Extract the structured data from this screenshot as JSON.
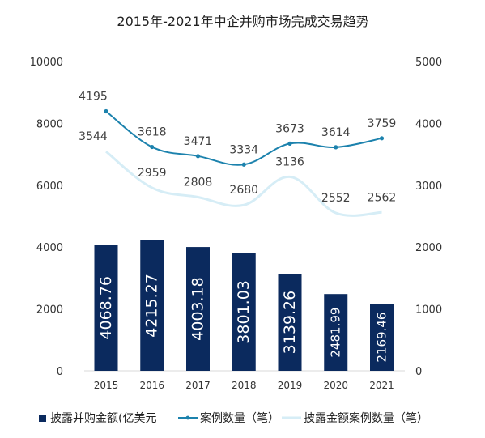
{
  "chart_data": {
    "type": "bar",
    "title": "2015年-2021年中企并购市场完成交易趋势",
    "categories": [
      "2015",
      "2016",
      "2017",
      "2018",
      "2019",
      "2020",
      "2021"
    ],
    "y_left": {
      "min": 0,
      "max": 10000,
      "ticks": [
        "0",
        "2000",
        "4000",
        "6000",
        "8000",
        "10000"
      ]
    },
    "y_right": {
      "min": 0,
      "max": 5000,
      "ticks": [
        "0",
        "1000",
        "2000",
        "3000",
        "4000",
        "5000"
      ]
    },
    "series": [
      {
        "name": "披露并购金额(亿美元",
        "kind": "bar",
        "axis": "left",
        "color": "#0b2a5e",
        "values": [
          4068.76,
          4215.27,
          4003.18,
          3801.03,
          3139.26,
          2481.99,
          2169.46
        ],
        "labels": [
          "4068.76",
          "4215.27",
          "4003.18",
          "3801.03",
          "3139.26",
          "2481.99",
          "2169.46"
        ]
      },
      {
        "name": "案例数量（笔）",
        "kind": "line",
        "axis": "right",
        "color": "#1c82ad",
        "values": [
          4195,
          3618,
          3471,
          3334,
          3673,
          3614,
          3759
        ],
        "labels": [
          "4195",
          "3618",
          "3471",
          "3334",
          "3673",
          "3614",
          "3759"
        ]
      },
      {
        "name": "披露金额案例数量（笔）",
        "kind": "line",
        "axis": "right",
        "color": "#d6edf6",
        "values": [
          3544,
          2959,
          2808,
          2680,
          3136,
          2552,
          2562
        ],
        "labels": [
          "3544",
          "2959",
          "2808",
          "2680",
          "3136",
          "2552",
          "2562"
        ]
      }
    ],
    "legend_position": "bottom",
    "grid": false
  }
}
